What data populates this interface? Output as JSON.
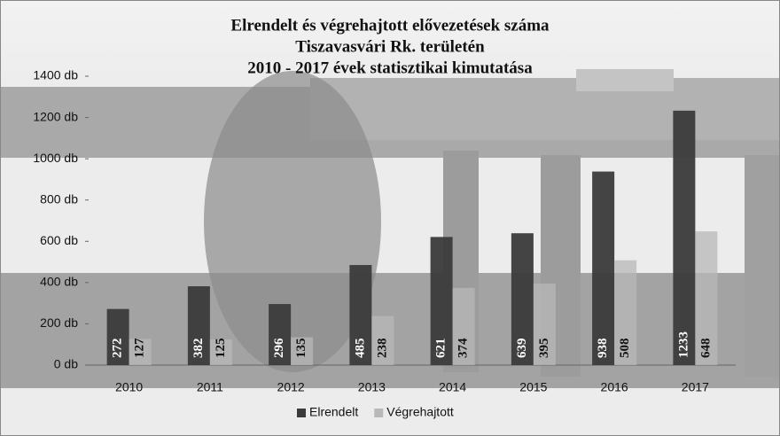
{
  "chart_data": {
    "type": "bar",
    "title": [
      "Elrendelt és végrehajtott elővezetések száma",
      "Tiszavasvári Rk. területén",
      "2010 - 2017 évek statisztikai kimutatása"
    ],
    "categories": [
      "2010",
      "2011",
      "2012",
      "2013",
      "2014",
      "2015",
      "2016",
      "2017"
    ],
    "series": [
      {
        "name": "Elrendelt",
        "color": "#3b3b3b",
        "values": [
          272,
          382,
          296,
          485,
          621,
          639,
          938,
          1233
        ]
      },
      {
        "name": "Végrehajtott",
        "color": "#b8b8b8",
        "values": [
          127,
          125,
          135,
          238,
          374,
          395,
          508,
          648
        ]
      }
    ],
    "ylim": [
      0,
      1400
    ],
    "yticks": [
      {
        "value": 0,
        "label": "0 db"
      },
      {
        "value": 200,
        "label": "200 db"
      },
      {
        "value": 400,
        "label": "400 db"
      },
      {
        "value": 600,
        "label": "600 db"
      },
      {
        "value": 800,
        "label": "800 db"
      },
      {
        "value": 1000,
        "label": "1000 db"
      },
      {
        "value": 1200,
        "label": "1200 db"
      },
      {
        "value": 1400,
        "label": "1400 db"
      }
    ],
    "legend": "bottom"
  }
}
